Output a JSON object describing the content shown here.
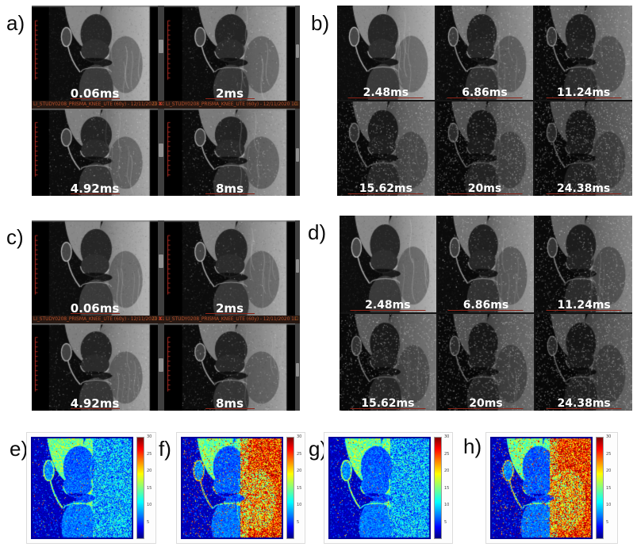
{
  "panels": [
    {
      "id": "a",
      "label": "a)",
      "layout": "viewer-2x2",
      "echo_times": [
        "0.06ms",
        "2ms",
        "4.92ms",
        "8ms"
      ],
      "status_text": "LI_STUDY0208_PRISMA_KNEE_UTE (60y) - 12/11/2020 10"
    },
    {
      "id": "b",
      "label": "b)",
      "layout": "grid-3x2",
      "echo_times": [
        "2.48ms",
        "6.86ms",
        "11.24ms",
        "15.62ms",
        "20ms",
        "24.38ms"
      ]
    },
    {
      "id": "c",
      "label": "c)",
      "layout": "viewer-2x2",
      "echo_times": [
        "0.06ms",
        "2ms",
        "4.92ms",
        "8ms"
      ],
      "status_text": "LI_STUDY0208_PRISMA_KNEE_UTE (60y) - 12/11/2020 11"
    },
    {
      "id": "d",
      "label": "d)",
      "layout": "grid-3x2",
      "echo_times": [
        "2.48ms",
        "6.86ms",
        "11.24ms",
        "15.62ms",
        "20ms",
        "24.38ms"
      ]
    }
  ],
  "window_icons": {
    "restore": "□",
    "close": "✕"
  },
  "maps": [
    {
      "id": "e",
      "label": "e)",
      "intensity": "low"
    },
    {
      "id": "f",
      "label": "f)",
      "intensity": "high"
    },
    {
      "id": "g",
      "label": "g)",
      "intensity": "low"
    },
    {
      "id": "h",
      "label": "h)",
      "intensity": "high"
    }
  ],
  "colorbar": {
    "ticks": [
      "30",
      "25",
      "20",
      "15",
      "10",
      "5"
    ],
    "min": 0,
    "max": 30,
    "colormap": "jet"
  },
  "colors": {
    "viewer_background": "#000000",
    "status_bar_background": "#261812",
    "status_bar_text": "#b44f2a",
    "ruler_red": "#b32d23",
    "scale_line_red": "#8c2418",
    "echo_label_text": "#ffffff"
  }
}
